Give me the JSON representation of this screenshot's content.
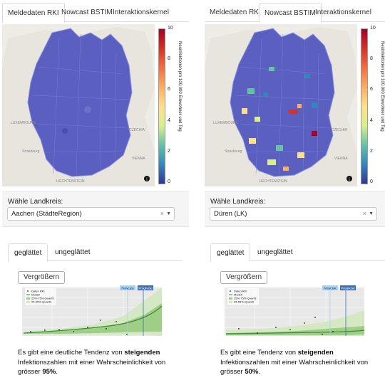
{
  "left": {
    "tabs": [
      {
        "label": "Meldedaten RKI",
        "active": true
      },
      {
        "label": "Nowcast BSTIM",
        "active": false
      },
      {
        "label": "Interaktionskernel",
        "active": false
      }
    ],
    "colorbar": {
      "ticks": [
        "10",
        "8",
        "6",
        "4",
        "2",
        "0"
      ],
      "label": "Neuinfektionen pro 100.000 Einwohner und Tag"
    },
    "map_labels": [
      "LUXEMBOURG",
      "CZECHIA",
      "Strasbourg",
      "VIENNA",
      "LIECHTENSTEIN"
    ],
    "landkreis_label": "Wähle Landkreis:",
    "landkreis_value": "Aachen (StädteRegion)",
    "smooth_tabs": [
      {
        "label": "geglättet",
        "active": true
      },
      {
        "label": "ungeglättet",
        "active": false
      }
    ],
    "enlarge_label": "Vergrößern",
    "chart_legend": [
      "Daten RKI",
      "Modell",
      "25%-75%-Quantil",
      "05-95%-Quantil"
    ],
    "chart_tags": [
      "Nowcast",
      "Prognose"
    ],
    "desc_prefix": "Es gibt eine deutliche Tendenz von",
    "desc_trend": "steigenden",
    "desc_middle": "Infektionszahlen mit einer Wahrscheinlichkeit von grösser",
    "desc_prob": "95%",
    "desc_end": "."
  },
  "right": {
    "tabs": [
      {
        "label": "Meldedaten RKI",
        "active": false
      },
      {
        "label": "Nowcast BSTIM",
        "active": true
      },
      {
        "label": "Interaktionskernel",
        "active": false
      }
    ],
    "colorbar": {
      "ticks": [
        "10",
        "8",
        "6",
        "4",
        "2",
        "0"
      ],
      "label": "Neuinfektionen pro 100.000 Einwohner und Tag"
    },
    "map_labels": [
      "LUXEMBOURG",
      "CZECHIA",
      "Strasbourg",
      "VIENNA",
      "LIECHTENSTEIN"
    ],
    "landkreis_label": "Wähle Landkreis:",
    "landkreis_value": "Düren (LK)",
    "smooth_tabs": [
      {
        "label": "geglättet",
        "active": true
      },
      {
        "label": "ungeglättet",
        "active": false
      }
    ],
    "enlarge_label": "Vergrößern",
    "chart_legend": [
      "Daten RKI",
      "Modell",
      "25%-75%-Quantil",
      "05-95%-Quantil"
    ],
    "chart_tags": [
      "Nowcast",
      "Prognose"
    ],
    "desc_prefix": "Es gibt eine Tendenz von",
    "desc_trend": "steigenden",
    "desc_middle": "Infektionszahlen mit einer Wahrscheinlichkeit von grösser",
    "desc_prob": "50%",
    "desc_end": "."
  },
  "colors": {
    "map_fill": "#5a5fc0",
    "map_border": "#7a80d8",
    "band_outer": "#d4e8c4",
    "band_inner": "#9fce86",
    "model_line": "#3c8c3c",
    "nowcast_tag": "#a9d3f0",
    "prognose_tag": "#3a6fb5"
  }
}
